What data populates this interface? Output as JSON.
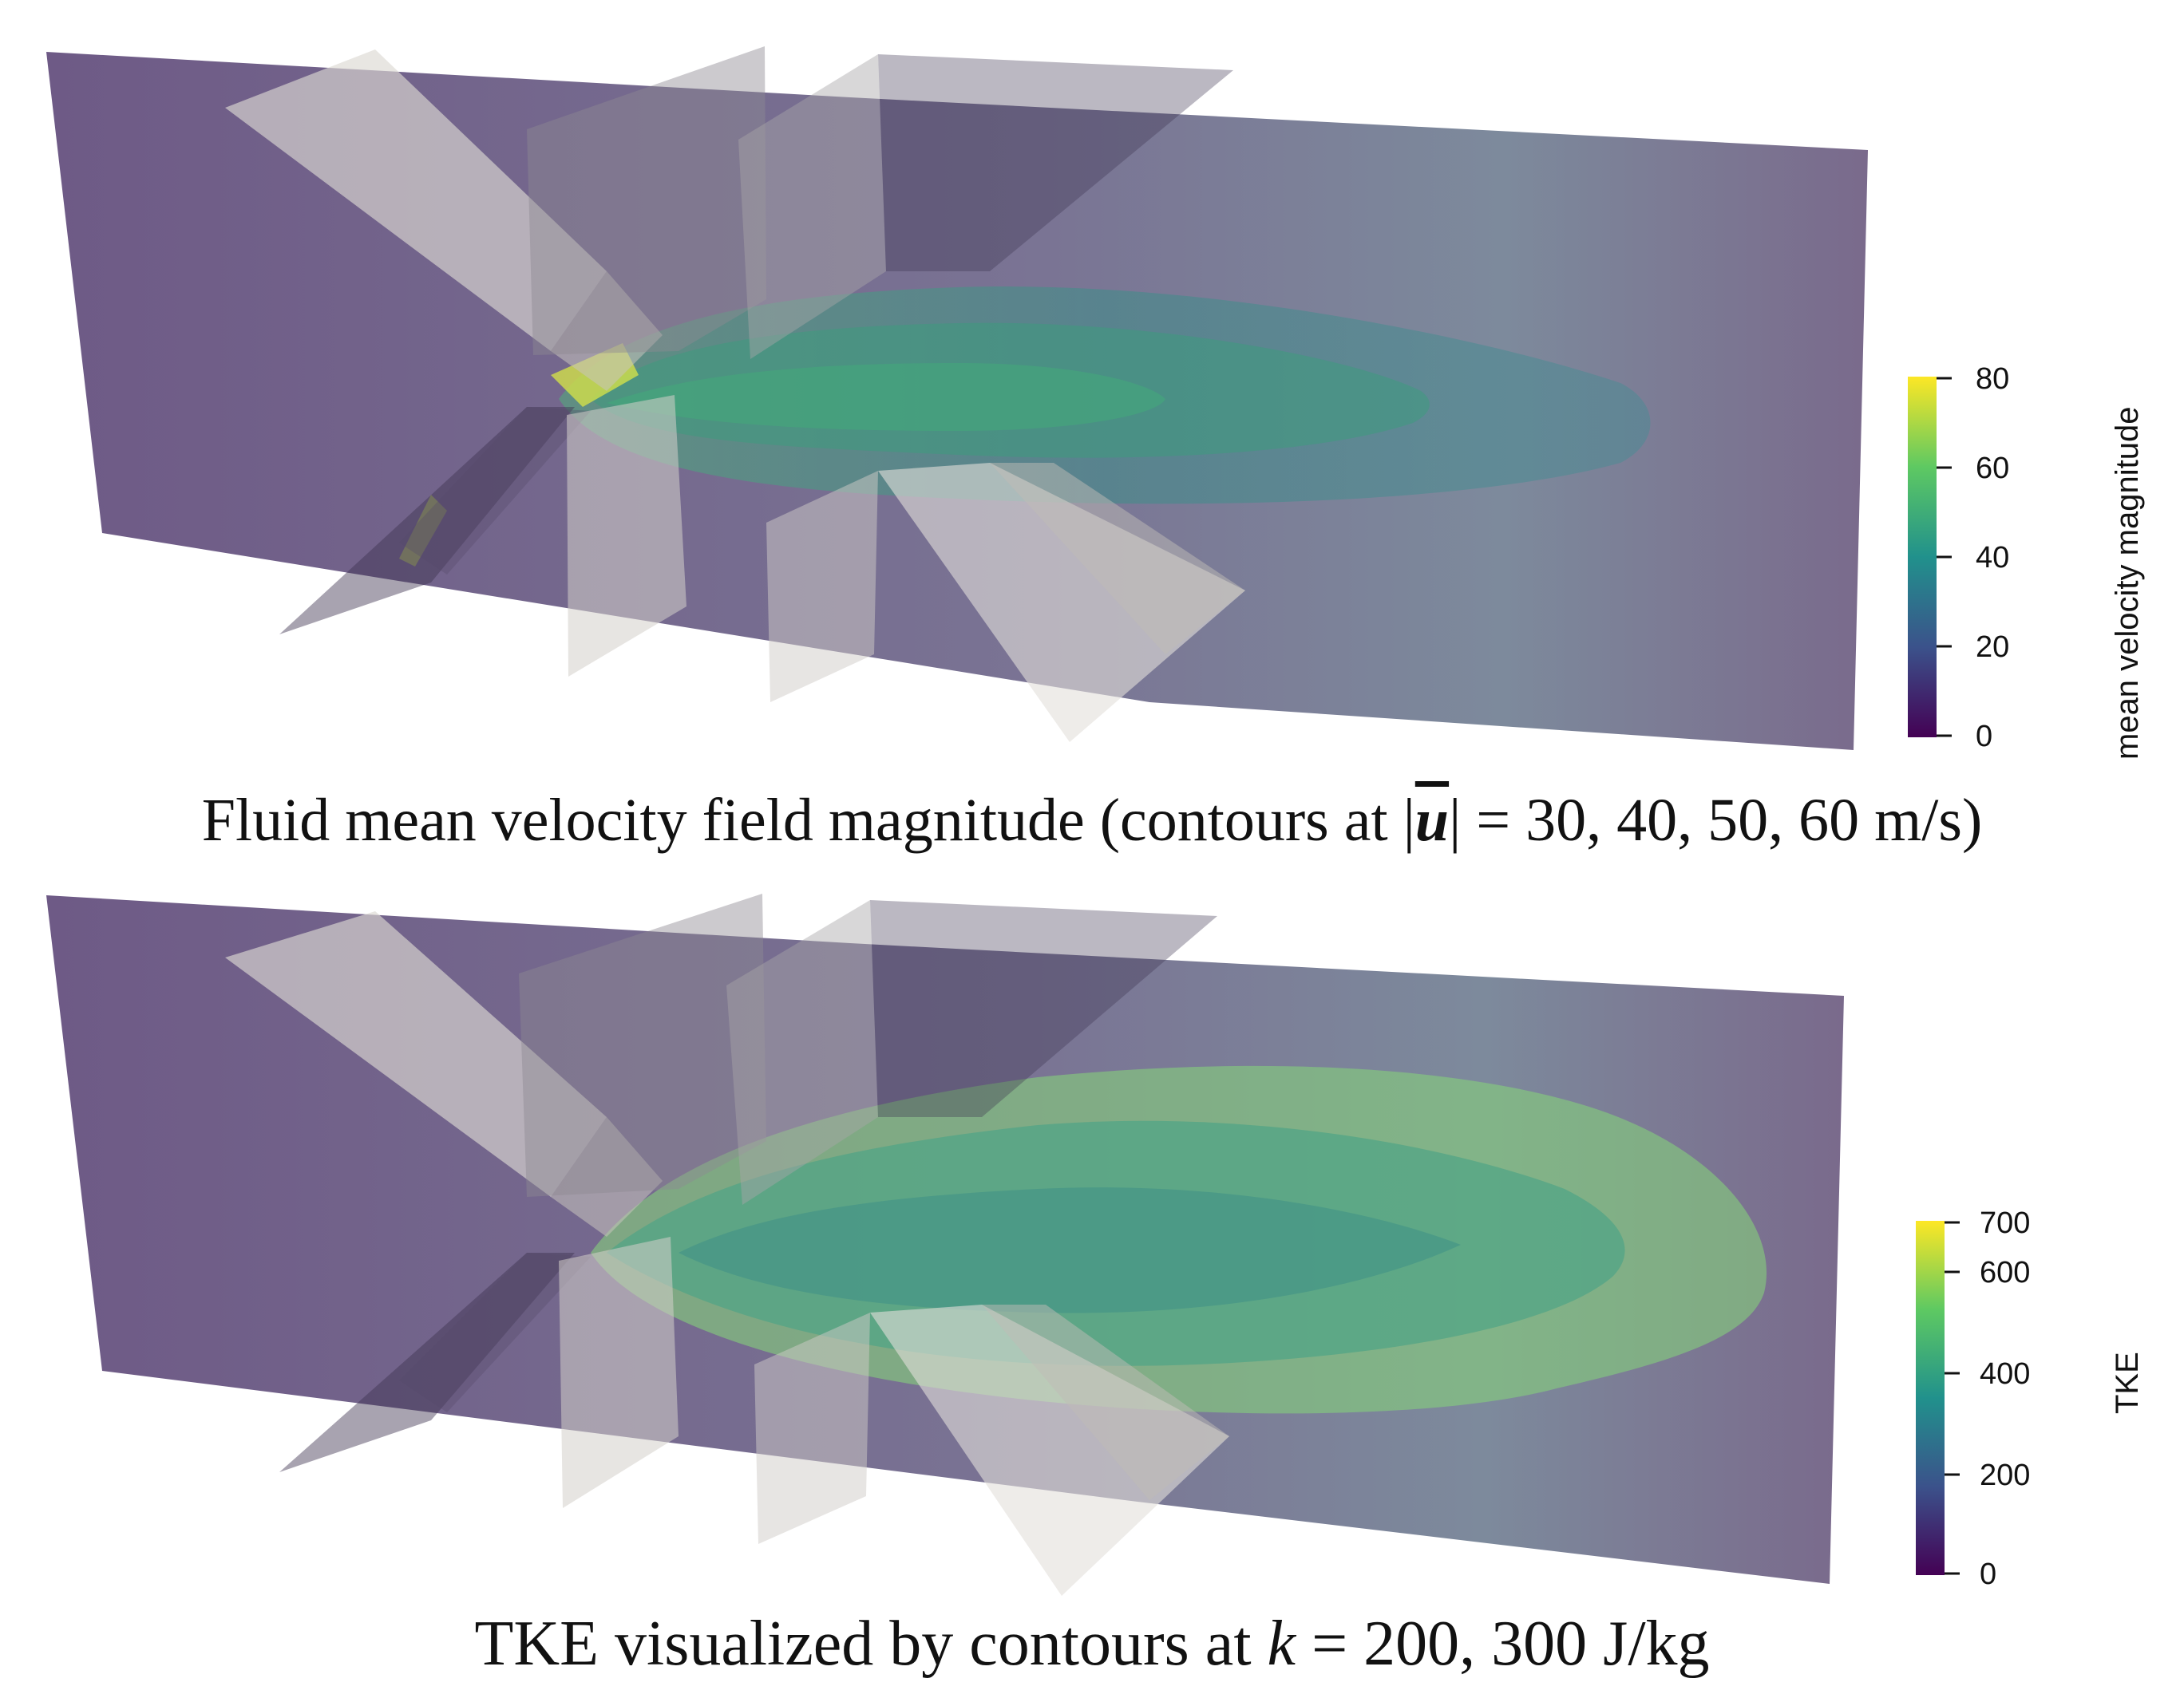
{
  "panels": [
    {
      "colorbar": {
        "title": "mean velocity magnitude",
        "ticks": [
          "80",
          "60",
          "40",
          "20",
          "0"
        ],
        "colormap": [
          "#fde725",
          "#5ec962",
          "#21918c",
          "#3b528b",
          "#440154"
        ]
      },
      "caption": {
        "prefix": "Fluid mean velocity field magnitude (contours at |",
        "symbol": "u",
        "suffix": "| = 30, 40, 50, 60 m/s)"
      }
    },
    {
      "colorbar": {
        "title": "TKE",
        "ticks": [
          "700",
          "600",
          "400",
          "200",
          "0"
        ],
        "colormap": [
          "#fde725",
          "#5ec962",
          "#21918c",
          "#3b528b",
          "#440154"
        ]
      },
      "caption": {
        "prefix": "TKE visualized by contours at ",
        "symbol": "k",
        "suffix": " = 200, 300 J/kg"
      }
    }
  ],
  "colors": {
    "background_plane": "#6b5a80",
    "blade_light": "#d9d6d0",
    "blade_dark": "#4a3d5c",
    "jet_teal": "#3f8f86",
    "jet_green": "#7fc77a"
  }
}
